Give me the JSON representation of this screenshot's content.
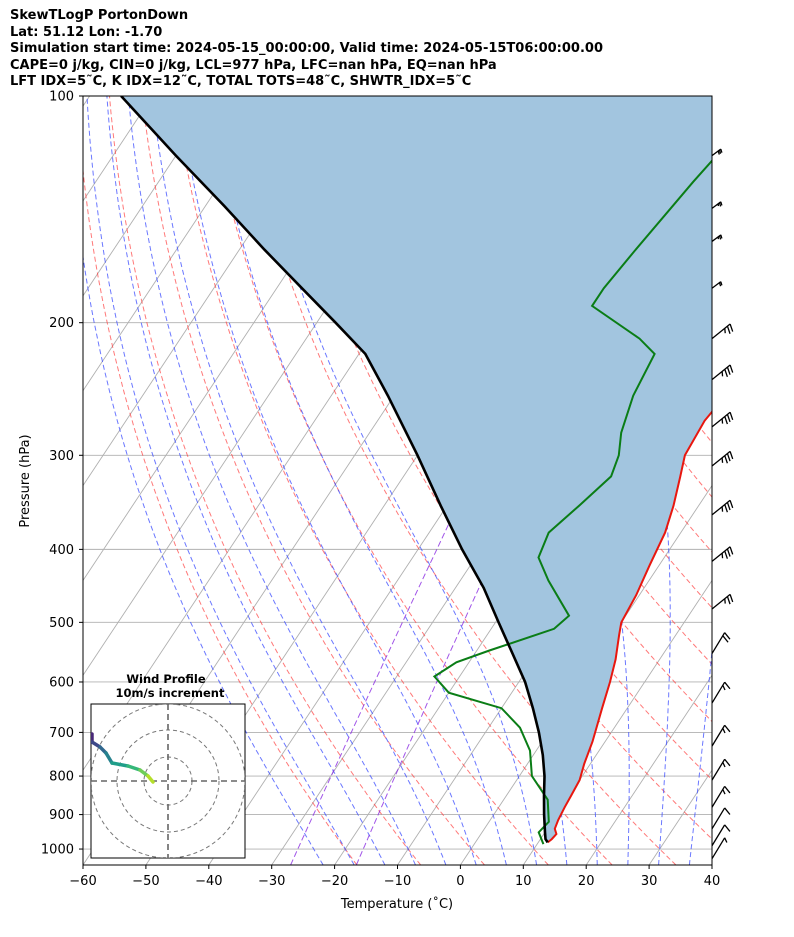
{
  "header": {
    "line1": "SkewTLogP PortonDown",
    "line2": "Lat: 51.12   Lon: -1.70",
    "line3": "Simulation start time: 2024-05-15_00:00:00, Valid time: 2024-05-15T06:00:00.00",
    "line4": "CAPE=0 j/kg, CIN=0 j/kg, LCL=977 hPa, LFC=nan hPa, EQ=nan hPa",
    "line5": "LFT IDX=5˜C, K IDX=12˜C, TOTAL TOTS=48˜C, SHWTR_IDX=5˜C"
  },
  "chart_data": {
    "type": "line",
    "subtype": "skew-T log-P",
    "xlabel": "Temperature (˚C)",
    "ylabel": "Pressure (hPa)",
    "xlim": [
      -60,
      40
    ],
    "ylim": [
      1050,
      100
    ],
    "y_scale": "log",
    "x_ticks": [
      "−60",
      "−50",
      "−40",
      "−30",
      "−20",
      "−10",
      "0",
      "10",
      "20",
      "30",
      "40"
    ],
    "y_ticks": [
      "1000",
      "900",
      "800",
      "700",
      "600",
      "500",
      "400",
      "300",
      "200",
      "100"
    ],
    "grid": true,
    "colors": {
      "temperature": "#e8170f",
      "dewpoint": "#0a7d16",
      "parcel": "#000000",
      "cape_fill": "#a2c5df",
      "dry_adiabat": "#ff4040",
      "moist_adiabat": "#3a4bff",
      "mixing_ratio": "#8a2be2"
    },
    "series": [
      {
        "key": "temperature",
        "points": [
          [
            11.5,
            980
          ],
          [
            11.8,
            970
          ],
          [
            12.0,
            955
          ],
          [
            11.2,
            940
          ],
          [
            10.8,
            915
          ],
          [
            10.5,
            880
          ],
          [
            10.3,
            850
          ],
          [
            10.0,
            810
          ],
          [
            9.0,
            770
          ],
          [
            8.0,
            720
          ],
          [
            6.0,
            650
          ],
          [
            4.5,
            600
          ],
          [
            3.0,
            560
          ],
          [
            1.0,
            520
          ],
          [
            0,
            500
          ],
          [
            -0.5,
            460
          ],
          [
            -1.5,
            420
          ],
          [
            -2.5,
            380
          ],
          [
            -4,
            350
          ],
          [
            -6,
            320
          ],
          [
            -7.5,
            300
          ],
          [
            -8,
            270
          ],
          [
            -7,
            240
          ],
          [
            -4,
            210
          ],
          [
            1,
            180
          ],
          [
            8,
            155
          ],
          [
            13,
            135
          ],
          [
            15,
            125
          ],
          [
            16,
            115
          ],
          [
            17,
            105
          ],
          [
            18,
            100
          ]
        ]
      },
      {
        "key": "dewpoint",
        "points": [
          [
            11.0,
            985
          ],
          [
            9.0,
            950
          ],
          [
            9.5,
            920
          ],
          [
            7.0,
            860
          ],
          [
            2.0,
            800
          ],
          [
            -1.0,
            740
          ],
          [
            -5.0,
            690
          ],
          [
            -10.0,
            650
          ],
          [
            -20.0,
            620
          ],
          [
            -24.0,
            590
          ],
          [
            -22.0,
            565
          ],
          [
            -18.0,
            545
          ],
          [
            -10.0,
            510
          ],
          [
            -9.0,
            490
          ],
          [
            -16.0,
            440
          ],
          [
            -20.0,
            410
          ],
          [
            -21.0,
            380
          ],
          [
            -19.0,
            350
          ],
          [
            -17.0,
            320
          ],
          [
            -18.0,
            300
          ],
          [
            -20.0,
            280
          ],
          [
            -22.0,
            250
          ],
          [
            -23.0,
            220
          ],
          [
            -27.0,
            210
          ],
          [
            -38.0,
            190
          ],
          [
            -38.0,
            180
          ],
          [
            -37.0,
            160
          ],
          [
            -35.0,
            130
          ],
          [
            -33.0,
            110
          ],
          [
            -31.0,
            100
          ]
        ]
      },
      {
        "key": "parcel",
        "points": [
          [
            11.5,
            980
          ],
          [
            10.8,
            970
          ],
          [
            10.0,
            950
          ],
          [
            8.0,
            900
          ],
          [
            6.0,
            850
          ],
          [
            4.0,
            800
          ],
          [
            1.5,
            750
          ],
          [
            -1.5,
            700
          ],
          [
            -5.0,
            650
          ],
          [
            -9.0,
            600
          ],
          [
            -14.0,
            550
          ],
          [
            -19.5,
            500
          ],
          [
            -25.5,
            450
          ],
          [
            -33.0,
            400
          ],
          [
            -41.0,
            350
          ],
          [
            -50.0,
            300
          ],
          [
            -61.0,
            250
          ],
          [
            -69.0,
            220
          ],
          [
            -77.0,
            200
          ],
          [
            -86.0,
            180
          ],
          [
            -96.0,
            160
          ],
          [
            -107.0,
            140
          ],
          [
            -120.0,
            120
          ],
          [
            -135.0,
            100
          ]
        ]
      }
    ],
    "wind_barbs": [
      {
        "p": 120,
        "speed_kt": 30
      },
      {
        "p": 141,
        "speed_kt": 25
      },
      {
        "p": 156,
        "speed_kt": 25
      },
      {
        "p": 180,
        "speed_kt": 20
      },
      {
        "p": 210,
        "speed_kt": 25
      },
      {
        "p": 238,
        "speed_kt": 35
      },
      {
        "p": 275,
        "speed_kt": 35
      },
      {
        "p": 310,
        "speed_kt": 35
      },
      {
        "p": 360,
        "speed_kt": 35
      },
      {
        "p": 415,
        "speed_kt": 35
      },
      {
        "p": 480,
        "speed_kt": 25
      },
      {
        "p": 550,
        "speed_kt": 20
      },
      {
        "p": 640,
        "speed_kt": 15
      },
      {
        "p": 730,
        "speed_kt": 15
      },
      {
        "p": 810,
        "speed_kt": 15
      },
      {
        "p": 880,
        "speed_kt": 15
      },
      {
        "p": 940,
        "speed_kt": 10
      },
      {
        "p": 990,
        "speed_kt": 10
      },
      {
        "p": 1030,
        "speed_kt": 5
      }
    ],
    "hodograph": {
      "title": "Wind Profile",
      "subtitle": "10m/s increment",
      "points": [
        [
          -1.5,
          -0.1
        ],
        [
          -2.0,
          0.5
        ],
        [
          -2.8,
          1.1
        ],
        [
          -4.0,
          1.5
        ],
        [
          -5.6,
          1.8
        ],
        [
          -6.2,
          2.8
        ],
        [
          -6.8,
          3.4
        ],
        [
          -7.6,
          3.9
        ],
        [
          -7.6,
          4.7
        ]
      ]
    }
  }
}
